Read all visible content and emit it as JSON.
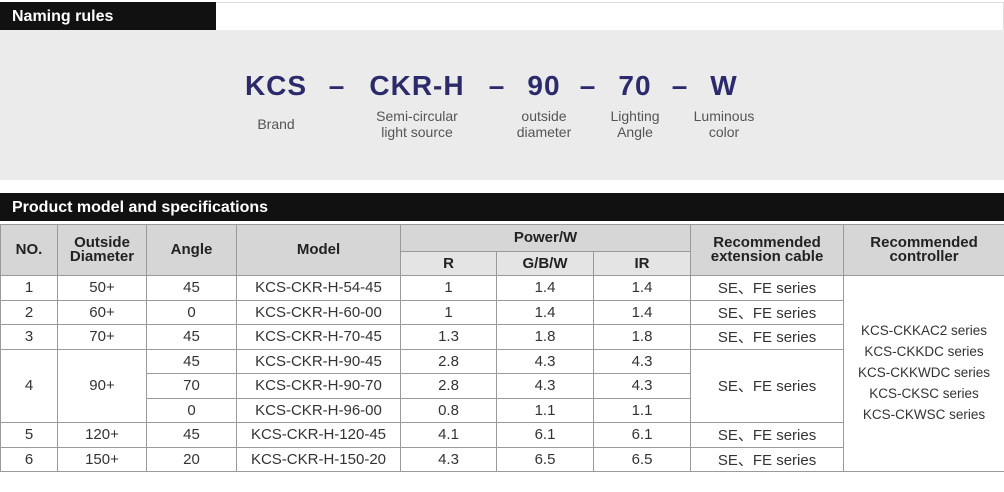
{
  "naming": {
    "title": "Naming rules",
    "separator": "–",
    "parts": [
      {
        "code": "KCS",
        "label": [
          "Brand"
        ]
      },
      {
        "code": "CKR-H",
        "label": [
          "Semi-circular",
          "light source"
        ]
      },
      {
        "code": "90",
        "label": [
          "outside",
          "diameter"
        ]
      },
      {
        "code": "70",
        "label": [
          "Lighting",
          "Angle"
        ]
      },
      {
        "code": "W",
        "label": [
          "Luminous",
          "color"
        ]
      }
    ]
  },
  "specs": {
    "title": "Product model and specifications",
    "header": {
      "no": "NO.",
      "diameter": [
        "Outside",
        "Diameter"
      ],
      "angle": "Angle",
      "model": "Model",
      "power": "Power/W",
      "r": "R",
      "gbw": "G/B/W",
      "ir": "IR",
      "cable": [
        "Recommended",
        "extension cable"
      ],
      "controller": [
        "Recommended",
        "controller"
      ]
    },
    "controller": [
      "KCS-CKKAC2 series",
      "KCS-CKKDC series",
      "KCS-CKKWDC series",
      "KCS-CKSC series",
      "KCS-CKWSC series"
    ],
    "groups": [
      {
        "no": 1,
        "diameter": "50+",
        "cable": "SE、FE series",
        "models": [
          {
            "angle": 45,
            "model": "KCS-CKR-H-54-45",
            "r": 1,
            "gbw": 1.4,
            "ir": 1.4
          }
        ]
      },
      {
        "no": 2,
        "diameter": "60+",
        "cable": "SE、FE series",
        "models": [
          {
            "angle": 0,
            "model": "KCS-CKR-H-60-00",
            "r": 1,
            "gbw": 1.4,
            "ir": 1.4
          }
        ]
      },
      {
        "no": 3,
        "diameter": "70+",
        "cable": "SE、FE series",
        "models": [
          {
            "angle": 45,
            "model": "KCS-CKR-H-70-45",
            "r": 1.3,
            "gbw": 1.8,
            "ir": 1.8
          }
        ]
      },
      {
        "no": 4,
        "diameter": "90+",
        "cable": "SE、FE series",
        "models": [
          {
            "angle": 45,
            "model": "KCS-CKR-H-90-45",
            "r": 2.8,
            "gbw": 4.3,
            "ir": 4.3
          },
          {
            "angle": 70,
            "model": "KCS-CKR-H-90-70",
            "r": 2.8,
            "gbw": 4.3,
            "ir": 4.3
          },
          {
            "angle": 0,
            "model": "KCS-CKR-H-96-00",
            "r": 0.8,
            "gbw": 1.1,
            "ir": 1.1
          }
        ]
      },
      {
        "no": 5,
        "diameter": "120+",
        "cable": "SE、FE series",
        "models": [
          {
            "angle": 45,
            "model": "KCS-CKR-H-120-45",
            "r": 4.1,
            "gbw": 6.1,
            "ir": 6.1
          }
        ]
      },
      {
        "no": 6,
        "diameter": "150+",
        "cable": "SE、FE series",
        "models": [
          {
            "angle": 20,
            "model": "KCS-CKR-H-150-20",
            "r": 4.3,
            "gbw": 6.5,
            "ir": 6.5
          }
        ]
      }
    ]
  }
}
